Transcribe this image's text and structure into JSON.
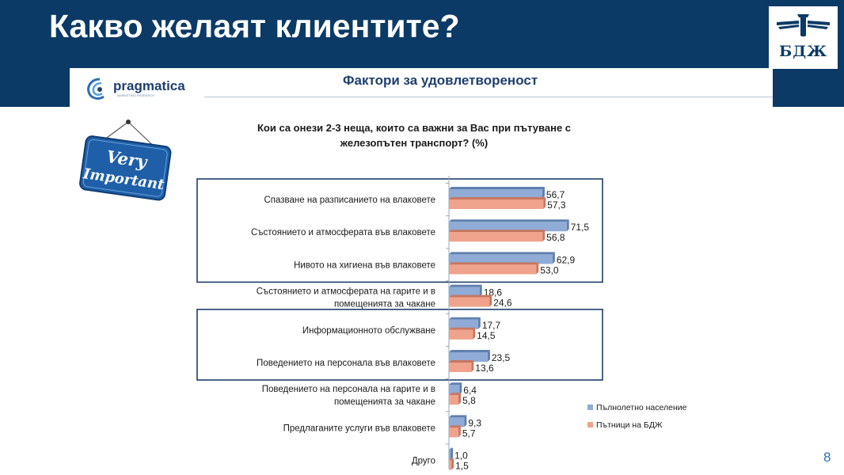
{
  "slide": {
    "title": "Какво желаят клиентите?",
    "logo_text": "БДЖ",
    "page_number": "8"
  },
  "inner": {
    "brand": "pragmatica",
    "brand_tagline": "MARKETING RESEARCH",
    "title": "Фактори за удовлетвореност",
    "sign_text": [
      "Very",
      "Important"
    ]
  },
  "colors": {
    "header": "#0b3a66",
    "series_adult": "#8fabd6",
    "series_bdz": "#f0a38c",
    "page_number": "#2e6db4"
  },
  "chart_data": {
    "type": "bar",
    "orientation": "horizontal",
    "title": "Кои са онези 2-3 неща, които са важни за Вас при пътуване с железопътен транспорт? (%)",
    "categories": [
      [
        "Спазване на разписанието на влаковете"
      ],
      [
        "Състоянието и атмосферата във влаковете"
      ],
      [
        "Нивото на хигиена във влаковете"
      ],
      [
        "Състоянието и атмосферата на гарите и в",
        "помещенията за чакане"
      ],
      [
        "Информационното обслужване"
      ],
      [
        "Поведението на персонала във влаковете"
      ],
      [
        "Поведението на персонала на гарите и в",
        "помещенията за чакане"
      ],
      [
        "Предлаганите услуги във влаковете"
      ],
      [
        "Друго"
      ]
    ],
    "series": [
      {
        "name": "Пълнолетно население",
        "values": [
          56.7,
          71.5,
          62.9,
          18.6,
          17.7,
          23.5,
          6.4,
          9.3,
          1.0
        ],
        "labels": [
          "56,7",
          "71,5",
          "62,9",
          "18,6",
          "17,7",
          "23,5",
          "6,4",
          "9,3",
          "1,0"
        ]
      },
      {
        "name": "Пътници на БДЖ",
        "values": [
          57.3,
          56.8,
          53.0,
          24.6,
          14.5,
          13.6,
          5.8,
          5.7,
          1.5
        ],
        "labels": [
          "57,3",
          "56,8",
          "53,0",
          "24,6",
          "14,5",
          "13,6",
          "5,8",
          "5,7",
          "1,5"
        ]
      }
    ],
    "highlighted_groups": [
      [
        0,
        2
      ],
      [
        4,
        5
      ]
    ],
    "legend_position": "right",
    "grid": false
  }
}
